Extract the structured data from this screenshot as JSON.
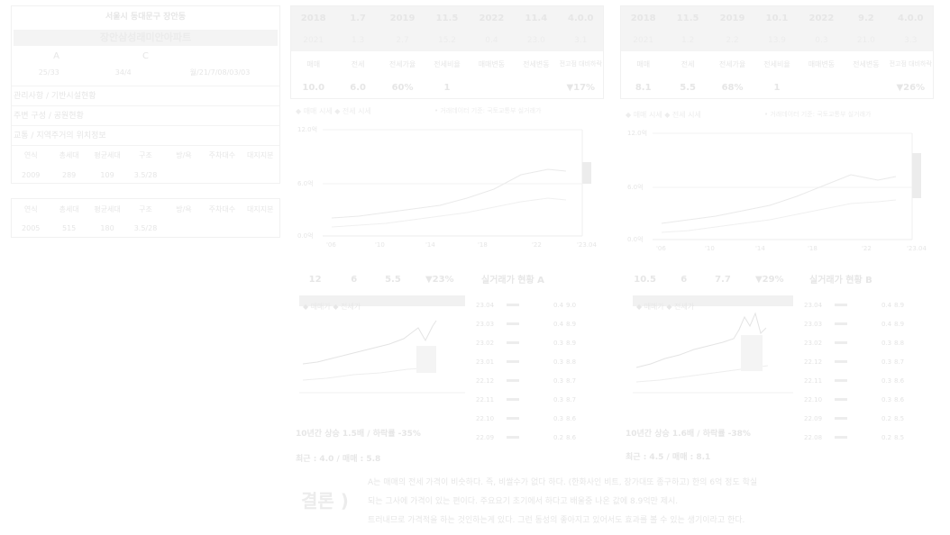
{
  "left_panel": {
    "address": "서울시 동대문구 장안동",
    "name": "장안삼성래미안아파트",
    "letters": [
      "A",
      "C"
    ],
    "summary": [
      "25/33",
      "34/4",
      "월/21/7/08/03/03"
    ],
    "labels": [
      "관리사항 / 기반시설현황",
      "주변 구성 / 공원현황",
      "교통 / 지역주거의 위치정보"
    ],
    "table1": {
      "headers": [
        "연식",
        "총세대",
        "평균세대",
        "구조",
        "방/욕",
        "주차대수",
        "대지지분"
      ],
      "values": [
        "2009",
        "289",
        "109",
        "3.5/28",
        "",
        "",
        ""
      ]
    },
    "table2": {
      "headers": [
        "연식",
        "총세대",
        "평균세대",
        "구조",
        "방/욕",
        "주차대수",
        "대지지분"
      ],
      "values": [
        "2005",
        "515",
        "180",
        "3.5/28",
        "",
        "",
        ""
      ]
    }
  },
  "compare_a": {
    "top_row": [
      "2018",
      "1.7",
      "2019",
      "11.5",
      "2022",
      "11.4",
      "4.0.0"
    ],
    "second_row": [
      "2021",
      "1.3",
      "2.7",
      "15.2",
      "0.4",
      "23.0",
      "3.1"
    ],
    "headers": [
      "매매",
      "전세",
      "전세가율",
      "전세비율",
      "매매변동",
      "전세변동",
      "전고점 대비하락"
    ],
    "values": [
      "10.0",
      "6.0",
      "60%",
      "1",
      "",
      "",
      "▼17%"
    ],
    "chart_legend": "◆ 매매 시세 ◆ 전세 시세",
    "chart_note": "• 거래데이터 기준: 국토교통부 실거래가",
    "y_ticks": [
      "12.0억",
      "6.0억",
      "0.0억"
    ],
    "x_ticks": [
      "'06",
      "'10",
      "'14",
      "'18",
      "'22",
      "'23.04"
    ],
    "stats": [
      "12",
      "6",
      "5.5",
      "▼23%"
    ],
    "recent_title": "실거래가 현황 A",
    "ten_year": "10년간 상승 1.5배 / 하락률 -35%",
    "recent_price": "최근 : 4.0 / 매매 : 5.8",
    "chart_legend2": "◆ 매매가 ◆ 전세가",
    "rows": [
      [
        "23.04",
        "0.4",
        "9.0"
      ],
      [
        "23.03",
        "0.4",
        "8.9"
      ],
      [
        "23.02",
        "0.3",
        "8.9"
      ],
      [
        "23.01",
        "0.3",
        "8.8"
      ],
      [
        "22.12",
        "0.3",
        "8.7"
      ],
      [
        "22.11",
        "0.3",
        "8.7"
      ],
      [
        "22.10",
        "0.3",
        "8.6"
      ],
      [
        "22.09",
        "0.2",
        "8.6"
      ]
    ]
  },
  "compare_b": {
    "top_row": [
      "2018",
      "11.5",
      "2019",
      "10.1",
      "2022",
      "9.2",
      "4.0.0"
    ],
    "second_row": [
      "2021",
      "1.2",
      "2.2",
      "13.9",
      "0.3",
      "21.0",
      "3.3"
    ],
    "headers": [
      "매매",
      "전세",
      "전세가율",
      "전세비율",
      "매매변동",
      "전세변동",
      "전고점 대비하락"
    ],
    "values": [
      "8.1",
      "5.5",
      "68%",
      "1",
      "",
      "",
      "▼26%"
    ],
    "chart_legend": "◆ 매매 시세 ◆ 전세 시세",
    "chart_note": "• 거래데이터 기준: 국토교통부 실거래가",
    "y_ticks": [
      "12.0억",
      "6.0억",
      "0.0억"
    ],
    "x_ticks": [
      "'06",
      "'10",
      "'14",
      "'18",
      "'22",
      "'23.04"
    ],
    "stats": [
      "10.5",
      "6",
      "7.7",
      "▼29%"
    ],
    "recent_title": "실거래가 현황 B",
    "ten_year": "10년간 상승 1.6배 / 하락률 -38%",
    "recent_price": "최근 : 4.5 / 매매 : 8.1",
    "chart_legend2": "◆ 매매가 ◆ 전세가",
    "rows": [
      [
        "23.04",
        "0.4",
        "8.9"
      ],
      [
        "23.03",
        "0.4",
        "8.9"
      ],
      [
        "23.02",
        "0.3",
        "8.8"
      ],
      [
        "22.12",
        "0.3",
        "8.7"
      ],
      [
        "22.11",
        "0.3",
        "8.6"
      ],
      [
        "22.10",
        "0.3",
        "8.6"
      ],
      [
        "22.09",
        "0.2",
        "8.5"
      ],
      [
        "22.08",
        "0.2",
        "8.5"
      ]
    ]
  },
  "conclusion": {
    "title": "결론 )",
    "lines": [
      "A는 매매의 전세 가격이 비슷하다. 즉, 비쌀수가 없다 하다. (한화사인 비트, 장가대또 종구하고) 한의 6억 정도 학실",
      "되는 그사에 가격이 있는 편이다. 주요요기 초기에서 하다고 배울중 나온 값에 8.9억만 제시.",
      "트러내므로 가격적을 하는 것인하는게 있다. 그런 동성의 좋아지고 있어서도 효과를 볼 수 있는 생기이라고 한다."
    ]
  }
}
